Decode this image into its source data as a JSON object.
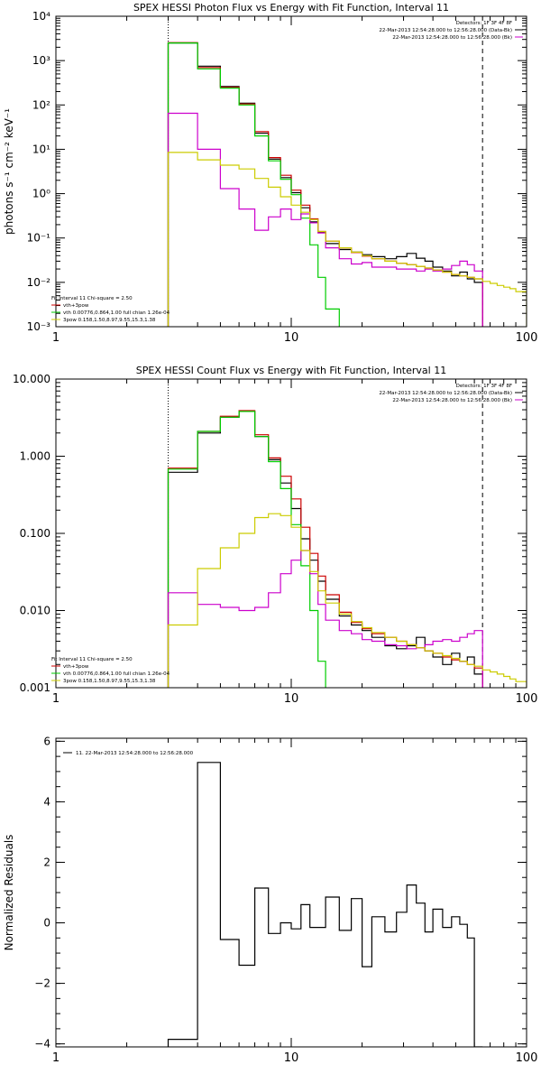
{
  "chart_data": [
    {
      "type": "line",
      "title": "SPEX HESSI Photon Flux vs Energy with Fit Function, Interval 11",
      "ylabel": "photons s⁻¹ cm⁻² keV⁻¹",
      "xscale": "log",
      "yscale": "log",
      "xlim": [
        1,
        100
      ],
      "ylim": [
        0.001,
        10000
      ],
      "xticks": [
        {
          "v": 1,
          "label": "1"
        },
        {
          "v": 10,
          "label": "10"
        },
        {
          "v": 100,
          "label": "100"
        }
      ],
      "yticks": [
        {
          "v": 0.001,
          "label": "10⁻³"
        },
        {
          "v": 0.01,
          "label": "10⁻²"
        },
        {
          "v": 0.1,
          "label": "10⁻¹"
        },
        {
          "v": 1,
          "label": "10⁰"
        },
        {
          "v": 10,
          "label": "10¹"
        },
        {
          "v": 100,
          "label": "10²"
        },
        {
          "v": 1000,
          "label": "10³"
        },
        {
          "v": 10000,
          "label": "10⁴"
        }
      ],
      "vlines": [
        {
          "x": 3.0,
          "style": "dotted"
        },
        {
          "x": 65,
          "style": "dashed"
        }
      ],
      "legend_topright": [
        {
          "text": "Detectors: 1F 3F 4F 8F",
          "color": ""
        },
        {
          "text": "22-Mar-2013 12:54:28.000 to 12:56:28.000 (Data-Bk)",
          "color": "#000000"
        },
        {
          "text": "22-Mar-2013 12:54:28.000 to 12:56:28.000 (Bk)",
          "color": "#cc00cc"
        }
      ],
      "legend_bottomleft": [
        {
          "text": "Fit Interval 11    Chi-square = 2.50",
          "color": ""
        },
        {
          "text": "vth+3pow",
          "color": "#cc0000"
        },
        {
          "text": "vth 0.00776,0.864,1.00  full chian 1.26e-04",
          "color": "#00cc00"
        },
        {
          "text": "3pow 0.158,1.50,8.97,9.55,15.3,1.38",
          "color": "#cccc00"
        }
      ],
      "series": [
        {
          "color": "#000000",
          "edges": [
            3.0,
            4.0,
            5.0,
            6.0,
            7.0,
            8.0,
            9.0,
            10.0,
            11.0,
            12.0,
            13.0,
            14.0,
            16.0,
            18.0,
            20.0,
            22.0,
            25.0,
            28.0,
            31.0,
            34.0,
            37.0,
            40.0,
            44.0,
            48.0,
            52.0,
            56.0,
            60.0,
            65.0
          ],
          "values": [
            2500,
            750,
            260,
            110,
            23,
            6,
            2.3,
            1.05,
            0.48,
            0.23,
            0.135,
            0.075,
            0.055,
            0.048,
            0.042,
            0.038,
            0.034,
            0.038,
            0.045,
            0.035,
            0.03,
            0.022,
            0.018,
            0.014,
            0.017,
            0.012,
            0.01
          ]
        },
        {
          "color": "#cc0000",
          "edges": [
            3.0,
            4.0,
            5.0,
            6.0,
            7.0,
            8.0,
            9.0,
            10.0,
            11.0,
            12.0,
            13.0,
            14.0,
            16.0,
            18.0,
            20.0,
            22.0,
            25.0,
            28.0,
            31.0,
            34.0,
            37.0,
            40.0,
            44.0,
            48.0,
            52.0,
            56.0,
            60.0,
            65.0
          ],
          "values": [
            2550,
            700,
            250,
            105,
            25,
            6.5,
            2.6,
            1.2,
            0.55,
            0.27,
            0.14,
            0.085,
            0.06,
            0.047,
            0.039,
            0.034,
            0.03,
            0.027,
            0.025,
            0.023,
            0.021,
            0.019,
            0.017,
            0.015,
            0.014,
            0.013,
            0.012
          ]
        },
        {
          "color": "#00cc00",
          "edges": [
            3.0,
            4.0,
            5.0,
            6.0,
            7.0,
            8.0,
            9.0,
            10.0,
            11.0,
            12.0,
            13.0,
            14.0,
            16.0
          ],
          "values": [
            2500,
            650,
            240,
            100,
            20,
            5.5,
            2.1,
            0.95,
            0.28,
            0.07,
            0.013,
            0.0025
          ]
        },
        {
          "color": "#cc00cc",
          "edges": [
            3.0,
            4.0,
            5.0,
            6.0,
            7.0,
            8.0,
            9.0,
            10.0,
            11.0,
            12.0,
            13.0,
            14.0,
            16.0,
            18.0,
            20.0,
            22.0,
            25.0,
            28.0,
            31.0,
            34.0,
            37.0,
            40.0,
            44.0,
            48.0,
            52.0,
            56.0,
            60.0,
            65.0
          ],
          "values": [
            65,
            10,
            1.3,
            0.45,
            0.15,
            0.3,
            0.45,
            0.26,
            0.35,
            0.22,
            0.13,
            0.06,
            0.034,
            0.026,
            0.028,
            0.022,
            0.022,
            0.02,
            0.02,
            0.018,
            0.02,
            0.018,
            0.02,
            0.024,
            0.03,
            0.025,
            0.018
          ]
        },
        {
          "color": "#cccc00",
          "edges": [
            3.0,
            4.0,
            5.0,
            6.0,
            7.0,
            8.0,
            9.0,
            10.0,
            11.0,
            12.0,
            13.0,
            14.0,
            16.0,
            18.0,
            20.0,
            22.0,
            25.0,
            28.0,
            31.0,
            34.0,
            37.0,
            40.0,
            44.0,
            48.0,
            52.0,
            56.0,
            60.0,
            65.0,
            70.0,
            75.0,
            80.0,
            85.0,
            90.0,
            100.0
          ],
          "values": [
            8.5,
            5.8,
            4.4,
            3.6,
            2.2,
            1.4,
            0.85,
            0.55,
            0.38,
            0.26,
            0.14,
            0.085,
            0.06,
            0.048,
            0.04,
            0.034,
            0.03,
            0.027,
            0.025,
            0.023,
            0.021,
            0.019,
            0.017,
            0.015,
            0.014,
            0.013,
            0.012,
            0.0105,
            0.0095,
            0.0085,
            0.0078,
            0.0072,
            0.0062
          ]
        }
      ]
    },
    {
      "type": "line",
      "title": "SPEX HESSI Count Flux vs Energy with Fit Function, Interval 11",
      "xscale": "log",
      "yscale": "log",
      "xlim": [
        1,
        100
      ],
      "ylim": [
        0.001,
        10
      ],
      "xticks": [
        {
          "v": 1,
          "label": "1"
        },
        {
          "v": 10,
          "label": "10"
        },
        {
          "v": 100,
          "label": "100"
        }
      ],
      "yticks": [
        {
          "v": 0.001,
          "label": "0.001"
        },
        {
          "v": 0.01,
          "label": "0.010"
        },
        {
          "v": 0.1,
          "label": "0.100"
        },
        {
          "v": 1,
          "label": "1.000"
        },
        {
          "v": 10,
          "label": "10.000"
        }
      ],
      "vlines": [
        {
          "x": 3.0,
          "style": "dotted"
        },
        {
          "x": 65,
          "style": "dashed"
        }
      ],
      "legend_topright": [
        {
          "text": "Detectors: 1F 3F 4F 8F",
          "color": ""
        },
        {
          "text": "22-Mar-2013 12:54:28.000 to 12:56:28.000 (Data-Bk)",
          "color": "#000000"
        },
        {
          "text": "22-Mar-2013 12:54:28.000 to 12:56:28.000 (Bk)",
          "color": "#cc00cc"
        }
      ],
      "legend_bottomleft": [
        {
          "text": "Fit Interval 11    Chi-square = 2.50",
          "color": ""
        },
        {
          "text": "vth+3pow",
          "color": "#cc0000"
        },
        {
          "text": "vth 0.00776,0.864,1.00  full chian 1.26e-04",
          "color": "#00cc00"
        },
        {
          "text": "3pow 0.158,1.50,8.97,9.55,15.3,1.38",
          "color": "#cccc00"
        }
      ],
      "series": [
        {
          "color": "#000000",
          "edges": [
            3.0,
            4.0,
            5.0,
            6.0,
            7.0,
            8.0,
            9.0,
            10.0,
            11.0,
            12.0,
            13.0,
            14.0,
            16.0,
            18.0,
            20.0,
            22.0,
            25.0,
            28.0,
            31.0,
            34.0,
            37.0,
            40.0,
            44.0,
            48.0,
            52.0,
            56.0,
            60.0,
            65.0
          ],
          "values": [
            0.62,
            2.0,
            3.2,
            3.8,
            1.8,
            0.9,
            0.45,
            0.21,
            0.085,
            0.045,
            0.024,
            0.014,
            0.0085,
            0.0065,
            0.0055,
            0.0045,
            0.0035,
            0.0032,
            0.0035,
            0.0045,
            0.003,
            0.0025,
            0.002,
            0.0028,
            0.0022,
            0.0025,
            0.0015
          ]
        },
        {
          "color": "#cc0000",
          "edges": [
            3.0,
            4.0,
            5.0,
            6.0,
            7.0,
            8.0,
            9.0,
            10.0,
            11.0,
            12.0,
            13.0,
            14.0,
            16.0,
            18.0,
            20.0,
            22.0,
            25.0,
            28.0,
            31.0,
            34.0,
            37.0,
            40.0,
            44.0,
            48.0,
            52.0,
            56.0,
            60.0,
            65.0
          ],
          "values": [
            0.7,
            2.1,
            3.3,
            3.9,
            1.9,
            0.95,
            0.55,
            0.28,
            0.12,
            0.055,
            0.028,
            0.016,
            0.0095,
            0.007,
            0.0058,
            0.005,
            0.0045,
            0.004,
            0.0036,
            0.0033,
            0.003,
            0.0028,
            0.0025,
            0.0023,
            0.0022,
            0.002,
            0.0018
          ]
        },
        {
          "color": "#00cc00",
          "edges": [
            3.0,
            4.0,
            5.0,
            6.0,
            7.0,
            8.0,
            9.0,
            10.0,
            11.0,
            12.0,
            13.0,
            14.0
          ],
          "values": [
            0.68,
            2.1,
            3.2,
            3.8,
            1.8,
            0.85,
            0.38,
            0.13,
            0.038,
            0.01,
            0.0022
          ]
        },
        {
          "color": "#cc00cc",
          "edges": [
            3.0,
            4.0,
            5.0,
            6.0,
            7.0,
            8.0,
            9.0,
            10.0,
            11.0,
            12.0,
            13.0,
            14.0,
            16.0,
            18.0,
            20.0,
            22.0,
            25.0,
            28.0,
            31.0,
            34.0,
            37.0,
            40.0,
            44.0,
            48.0,
            52.0,
            56.0,
            60.0,
            65.0
          ],
          "values": [
            0.017,
            0.012,
            0.011,
            0.01,
            0.011,
            0.017,
            0.03,
            0.045,
            0.06,
            0.03,
            0.012,
            0.0075,
            0.0055,
            0.005,
            0.0042,
            0.004,
            0.0036,
            0.0035,
            0.0032,
            0.0033,
            0.0036,
            0.004,
            0.0042,
            0.004,
            0.0045,
            0.005,
            0.0055
          ]
        },
        {
          "color": "#cccc00",
          "edges": [
            3.0,
            4.0,
            5.0,
            6.0,
            7.0,
            8.0,
            9.0,
            10.0,
            11.0,
            12.0,
            13.0,
            14.0,
            16.0,
            18.0,
            20.0,
            22.0,
            25.0,
            28.0,
            31.0,
            34.0,
            37.0,
            40.0,
            44.0,
            48.0,
            52.0,
            56.0,
            60.0,
            65.0,
            70.0,
            75.0,
            80.0,
            85.0,
            90.0,
            100.0
          ],
          "values": [
            0.0065,
            0.035,
            0.065,
            0.1,
            0.16,
            0.18,
            0.17,
            0.12,
            0.06,
            0.032,
            0.018,
            0.0125,
            0.009,
            0.0072,
            0.006,
            0.0052,
            0.0045,
            0.004,
            0.0036,
            0.0033,
            0.003,
            0.0028,
            0.0026,
            0.0024,
            0.0022,
            0.002,
            0.0019,
            0.0017,
            0.0016,
            0.0015,
            0.0014,
            0.0013,
            0.0012
          ]
        }
      ]
    },
    {
      "type": "line",
      "title": "",
      "ylabel": "Normalized Residuals",
      "xscale": "log",
      "yscale": "linear",
      "xlim": [
        1,
        100
      ],
      "ylim": [
        -4.1,
        6.1
      ],
      "xticks": [
        {
          "v": 1,
          "label": "1"
        },
        {
          "v": 10,
          "label": "10"
        },
        {
          "v": 100,
          "label": "100"
        }
      ],
      "yticks": [
        {
          "v": -4,
          "label": "−4"
        },
        {
          "v": -2,
          "label": "−2"
        },
        {
          "v": 0,
          "label": "0"
        },
        {
          "v": 2,
          "label": "2"
        },
        {
          "v": 4,
          "label": "4"
        },
        {
          "v": 6,
          "label": "6"
        }
      ],
      "vlines": [],
      "legend_topright": [],
      "legend_bottomleft": [],
      "legend_topleft": [
        {
          "text": "11. 22-Mar-2013 12:54:28.000 to 12:56:28.000",
          "color": "#000000"
        }
      ],
      "series": [
        {
          "color": "#000000",
          "edges": [
            3.0,
            4.0,
            5.0,
            6.0,
            7.0,
            8.0,
            9.0,
            10.0,
            11.0,
            12.0,
            13.0,
            14.0,
            16.0,
            18.0,
            20.0,
            22.0,
            25.0,
            28.0,
            31.0,
            34.0,
            37.0,
            40.0,
            44.0,
            48.0,
            52.0,
            56.0,
            60.0,
            65.0
          ],
          "values": [
            -3.85,
            5.3,
            -0.55,
            -1.4,
            1.15,
            -0.35,
            0.0,
            -0.2,
            0.6,
            -0.15,
            -0.15,
            0.85,
            -0.25,
            0.8,
            -1.45,
            0.2,
            -0.3,
            0.35,
            1.25,
            0.65,
            -0.3,
            0.45,
            -0.15,
            0.2,
            -0.05,
            -0.5,
            -4.1
          ]
        }
      ]
    }
  ]
}
